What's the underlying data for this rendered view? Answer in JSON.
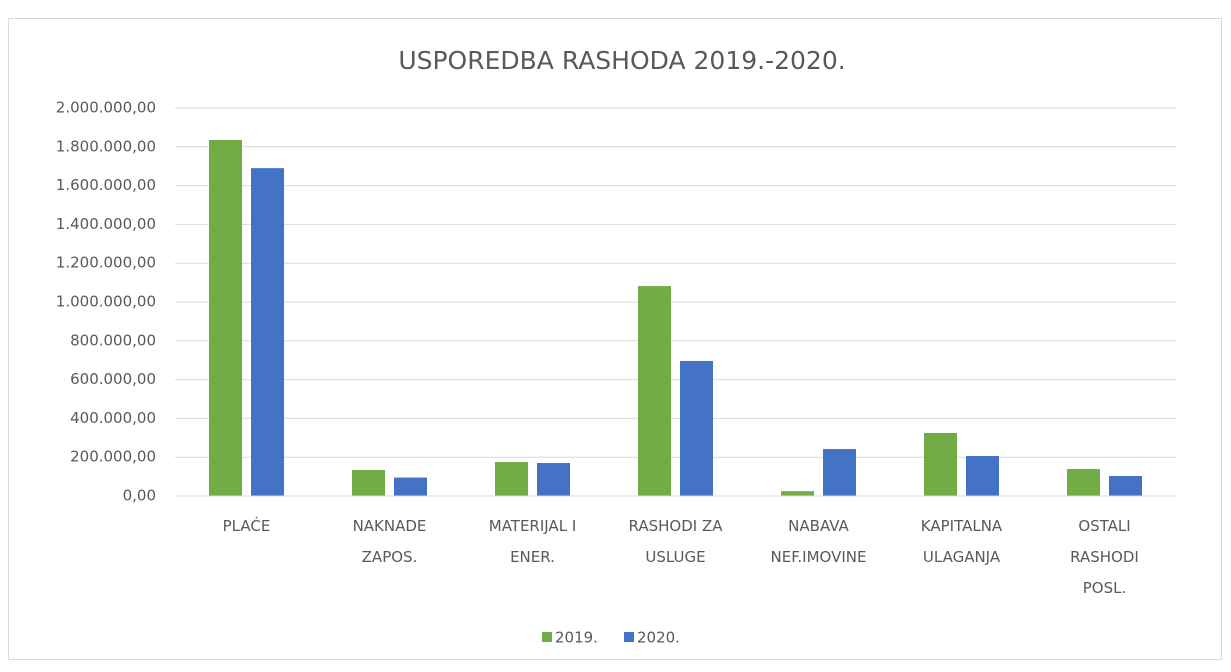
{
  "chart_data": {
    "type": "bar",
    "title": "USPOREDBA RASHODA 2019.-2020.",
    "categories": [
      "PLAĆE",
      "NAKNADE\nZAPOS.",
      "MATERIJAL I\nENER.",
      "RASHODI ZA\nUSLUGE",
      "NABAVA\nNEF.IMOVINE",
      "KAPITALNA\nULAGANJA",
      "OSTALI\nRASHODI\nPOSL."
    ],
    "series": [
      {
        "name": "2019.",
        "color": "#70ad47",
        "values": [
          1835000,
          134000,
          175000,
          1082000,
          25000,
          325000,
          139000
        ]
      },
      {
        "name": "2020.",
        "color": "#4472c4",
        "values": [
          1690000,
          95000,
          170000,
          696000,
          242000,
          206000,
          103000
        ]
      }
    ],
    "ylim": [
      0,
      2000000
    ],
    "yticks": [
      {
        "value": 0,
        "label": "0,00"
      },
      {
        "value": 200000,
        "label": "200.000,00"
      },
      {
        "value": 400000,
        "label": "400.000,00"
      },
      {
        "value": 600000,
        "label": "600.000,00"
      },
      {
        "value": 800000,
        "label": "800.000,00"
      },
      {
        "value": 1000000,
        "label": "1.000.000,00"
      },
      {
        "value": 1200000,
        "label": "1.200.000,00"
      },
      {
        "value": 1400000,
        "label": "1.400.000,00"
      },
      {
        "value": 1600000,
        "label": "1.600.000,00"
      },
      {
        "value": 1800000,
        "label": "1.800.000,00"
      },
      {
        "value": 2000000,
        "label": "2.000.000,00"
      }
    ],
    "grid": true,
    "legend": "bottom"
  }
}
